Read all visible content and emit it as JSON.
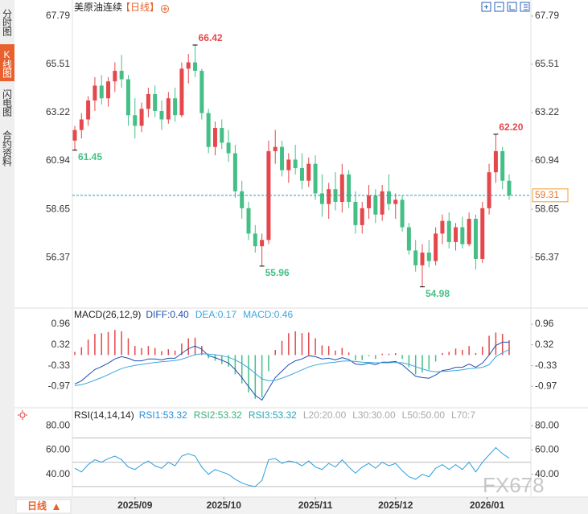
{
  "header": {
    "title": "美原油连续",
    "period": "【日线】"
  },
  "tabs": [
    "分时图",
    "K线图",
    "闪电图",
    "合约资料"
  ],
  "period_button": "日线",
  "watermark": "FX678",
  "chart_data": [
    {
      "type": "candlestick",
      "up_color": "#e5474b",
      "down_color": "#45bf86",
      "ylim": [
        54.09,
        68.36
      ],
      "yticks": [
        67.79,
        65.51,
        63.22,
        60.94,
        58.65,
        56.37
      ],
      "xticks": [
        {
          "value": 9,
          "label": "2025/09"
        },
        {
          "value": 22.3,
          "label": "2025/10"
        },
        {
          "value": 36,
          "label": "2025/11"
        },
        {
          "value": 48,
          "label": "2025/12"
        },
        {
          "value": 61.7,
          "label": "2026/01"
        }
      ],
      "open": [
        61.9,
        62.4,
        62.9,
        63.8,
        64.5,
        63.9,
        64.7,
        65.2,
        64.8,
        63.1,
        62.6,
        63.4,
        64.1,
        63.3,
        62.9,
        63.9,
        63.1,
        65.3,
        65.6,
        65.2,
        63.2,
        61.6,
        62.5,
        61.8,
        61.3,
        59.5,
        58.7,
        57.5,
        56.9,
        57.2,
        61.4,
        61.6,
        60.5,
        61.0,
        60.6,
        60.0,
        60.8,
        59.4,
        58.9,
        59.6,
        59.0,
        60.3,
        59.0,
        57.9,
        58.7,
        59.3,
        58.4,
        59.5,
        58.9,
        59.1,
        57.8,
        56.7,
        56.0,
        56.6,
        56.2,
        57.5,
        58.1,
        57.1,
        57.8,
        57.0,
        58.2,
        56.3,
        58.7,
        60.4,
        61.4,
        60.0
      ],
      "high": [
        62.6,
        63.2,
        64.0,
        64.9,
        65.0,
        64.9,
        65.6,
        65.95,
        65.0,
        63.9,
        63.7,
        64.4,
        64.5,
        63.8,
        64.2,
        64.4,
        65.6,
        66.0,
        66.42,
        65.3,
        63.4,
        62.8,
        62.9,
        62.4,
        61.7,
        60.0,
        59.0,
        57.9,
        57.5,
        61.9,
        62.4,
        61.9,
        61.3,
        61.7,
        61.3,
        61.1,
        61.2,
        60.3,
        59.9,
        60.4,
        60.8,
        60.5,
        59.5,
        59.0,
        59.8,
        59.6,
        59.8,
        60.3,
        59.4,
        59.3,
        58.0,
        57.2,
        57.0,
        57.2,
        57.8,
        58.4,
        58.5,
        58.0,
        58.3,
        58.5,
        58.4,
        59.0,
        60.8,
        62.2,
        61.6,
        60.3
      ],
      "low": [
        61.45,
        62.0,
        62.6,
        63.3,
        63.6,
        63.5,
        64.2,
        64.4,
        62.6,
        62.0,
        62.3,
        63.0,
        63.0,
        62.4,
        62.7,
        62.8,
        63.0,
        64.6,
        64.9,
        62.9,
        61.3,
        61.2,
        61.5,
        60.9,
        59.2,
        58.2,
        57.2,
        56.6,
        55.96,
        57.0,
        60.8,
        60.2,
        59.9,
        60.3,
        59.6,
        59.7,
        59.1,
        58.3,
        58.2,
        58.6,
        58.5,
        58.7,
        57.5,
        57.5,
        58.2,
        58.0,
        58.1,
        58.6,
        58.2,
        57.6,
        56.5,
        55.7,
        54.98,
        55.9,
        56.0,
        57.0,
        56.8,
        56.7,
        56.8,
        56.9,
        55.8,
        56.1,
        58.4,
        59.9,
        59.6,
        59.1
      ],
      "close": [
        62.4,
        62.9,
        63.8,
        64.5,
        63.9,
        64.7,
        65.2,
        64.8,
        63.1,
        62.6,
        63.4,
        64.1,
        63.3,
        62.9,
        63.9,
        63.1,
        65.3,
        65.6,
        65.2,
        63.2,
        61.6,
        62.5,
        61.8,
        61.3,
        59.5,
        58.7,
        57.5,
        56.9,
        57.2,
        61.4,
        61.6,
        60.5,
        61.0,
        60.6,
        60.0,
        60.8,
        59.4,
        58.9,
        59.6,
        59.0,
        60.3,
        59.0,
        57.9,
        58.7,
        59.3,
        58.4,
        59.5,
        58.9,
        59.1,
        57.8,
        56.7,
        56.0,
        56.6,
        56.2,
        57.5,
        58.1,
        57.1,
        57.8,
        57.0,
        58.2,
        56.3,
        58.7,
        60.4,
        61.4,
        60.0,
        59.31
      ],
      "high_labels": [
        null,
        null,
        null,
        null,
        null,
        null,
        null,
        null,
        null,
        null,
        null,
        null,
        null,
        null,
        null,
        null,
        null,
        null,
        "66.42",
        null,
        null,
        null,
        null,
        null,
        null,
        null,
        null,
        null,
        null,
        null,
        null,
        null,
        null,
        null,
        null,
        null,
        null,
        null,
        null,
        null,
        null,
        null,
        null,
        null,
        null,
        null,
        null,
        null,
        null,
        null,
        null,
        null,
        null,
        null,
        null,
        null,
        null,
        null,
        null,
        null,
        null,
        null,
        null,
        "62.20",
        null,
        null
      ],
      "low_labels": [
        "61.45",
        null,
        null,
        null,
        null,
        null,
        null,
        null,
        null,
        null,
        null,
        null,
        null,
        null,
        null,
        null,
        null,
        null,
        null,
        null,
        null,
        null,
        null,
        null,
        null,
        null,
        null,
        null,
        "55.96",
        null,
        null,
        null,
        null,
        null,
        null,
        null,
        null,
        null,
        null,
        null,
        null,
        null,
        null,
        null,
        null,
        null,
        null,
        null,
        null,
        null,
        null,
        null,
        "54.98",
        null,
        null,
        null,
        null,
        null,
        null,
        null,
        null,
        null,
        null,
        null,
        null,
        null
      ]
    },
    {
      "type": "macd",
      "title": "MACD(26,12,9)",
      "legend": [
        {
          "label": "DIFF:0.40",
          "color": "#1f4fae"
        },
        {
          "label": "DEA:0.17",
          "color": "#3aa6df"
        },
        {
          "label": "MACD:0.46",
          "color": "#3aa6df"
        }
      ],
      "ylim": [
        -1.59,
        1.41
      ],
      "yticks": [
        0.96,
        0.32,
        -0.33,
        -0.97
      ],
      "series": [
        {
          "name": "DIFF",
          "color": "#1f4fae",
          "values": [
            -0.9,
            -0.8,
            -0.62,
            -0.45,
            -0.36,
            -0.25,
            -0.12,
            -0.05,
            -0.1,
            -0.18,
            -0.18,
            -0.12,
            -0.12,
            -0.15,
            -0.1,
            -0.1,
            0.05,
            0.2,
            0.28,
            0.18,
            -0.02,
            -0.08,
            -0.16,
            -0.25,
            -0.45,
            -0.7,
            -0.98,
            -1.25,
            -1.4,
            -1.05,
            -0.7,
            -0.5,
            -0.3,
            -0.18,
            -0.12,
            -0.02,
            -0.05,
            -0.12,
            -0.1,
            -0.15,
            -0.08,
            -0.14,
            -0.28,
            -0.3,
            -0.25,
            -0.3,
            -0.22,
            -0.22,
            -0.2,
            -0.3,
            -0.48,
            -0.66,
            -0.7,
            -0.72,
            -0.62,
            -0.48,
            -0.45,
            -0.38,
            -0.38,
            -0.28,
            -0.38,
            -0.25,
            0.0,
            0.3,
            0.4,
            0.4
          ]
        },
        {
          "name": "DEA",
          "color": "#3aa6df",
          "values": [
            -0.95,
            -0.92,
            -0.86,
            -0.78,
            -0.7,
            -0.61,
            -0.51,
            -0.42,
            -0.36,
            -0.32,
            -0.29,
            -0.26,
            -0.23,
            -0.21,
            -0.19,
            -0.17,
            -0.13,
            -0.06,
            0.01,
            0.04,
            0.03,
            0.01,
            -0.02,
            -0.07,
            -0.15,
            -0.26,
            -0.4,
            -0.57,
            -0.74,
            -0.8,
            -0.78,
            -0.72,
            -0.64,
            -0.55,
            -0.46,
            -0.37,
            -0.31,
            -0.27,
            -0.24,
            -0.22,
            -0.19,
            -0.18,
            -0.2,
            -0.22,
            -0.23,
            -0.24,
            -0.24,
            -0.24,
            -0.23,
            -0.24,
            -0.29,
            -0.36,
            -0.43,
            -0.49,
            -0.52,
            -0.51,
            -0.5,
            -0.48,
            -0.46,
            -0.42,
            -0.41,
            -0.38,
            -0.3,
            -0.05,
            0.07,
            0.17
          ]
        },
        {
          "name": "MACD",
          "color": "#e5474b",
          "negative_color": "#45bf86",
          "values": [
            0.1,
            0.24,
            0.48,
            0.66,
            0.68,
            0.72,
            0.78,
            0.74,
            0.52,
            0.28,
            0.22,
            0.28,
            0.22,
            0.12,
            0.18,
            0.14,
            0.36,
            0.52,
            0.54,
            0.28,
            -0.1,
            -0.18,
            -0.28,
            -0.36,
            -0.6,
            -0.88,
            -1.16,
            -1.36,
            -1.32,
            -0.5,
            0.16,
            0.44,
            0.68,
            0.74,
            0.68,
            0.7,
            0.52,
            0.3,
            0.28,
            0.14,
            0.22,
            0.08,
            -0.16,
            -0.16,
            -0.04,
            -0.12,
            0.04,
            0.04,
            0.06,
            -0.12,
            -0.38,
            -0.6,
            -0.54,
            -0.46,
            -0.2,
            0.06,
            0.1,
            0.2,
            0.16,
            0.28,
            0.06,
            0.26,
            0.6,
            0.7,
            0.66,
            0.46
          ]
        }
      ]
    },
    {
      "type": "rsi",
      "title": "RSI(14,14,14)",
      "legend": [
        {
          "label": "RSI1:53.32",
          "color": "#2a8fd8"
        },
        {
          "label": "RSI2:53.32",
          "color": "#3bb07c"
        },
        {
          "label": "RSI3:53.32",
          "color": "#2aa6b8"
        },
        {
          "label": "L20:20.00",
          "color": "#aaaaaa"
        },
        {
          "label": "L30:30.00",
          "color": "#aaaaaa"
        },
        {
          "label": "L50:50.00",
          "color": "#aaaaaa"
        },
        {
          "label": "L70:7",
          "color": "#aaaaaa"
        }
      ],
      "levels": [
        20,
        30,
        50,
        70
      ],
      "ylim": [
        21.3,
        92.7
      ],
      "yticks": [
        {
          "value": 80,
          "label": "80.00"
        },
        {
          "value": 60,
          "label": "60.00"
        },
        {
          "value": 40,
          "label": "40.00"
        }
      ],
      "series": [
        {
          "name": "RSI1",
          "color": "#2a9ee0",
          "values": [
            45,
            42,
            48,
            52,
            50,
            53,
            55,
            52,
            46,
            44,
            48,
            51,
            47,
            45,
            50,
            47,
            55,
            57,
            55,
            46,
            40,
            44,
            42,
            40,
            36,
            33,
            31,
            30,
            35,
            52,
            53,
            49,
            51,
            50,
            47,
            51,
            46,
            44,
            49,
            46,
            52,
            46,
            41,
            46,
            49,
            45,
            50,
            47,
            49,
            43,
            38,
            36,
            40,
            38,
            45,
            48,
            44,
            48,
            44,
            50,
            42,
            50,
            56,
            62,
            57,
            53.32
          ]
        }
      ]
    }
  ]
}
